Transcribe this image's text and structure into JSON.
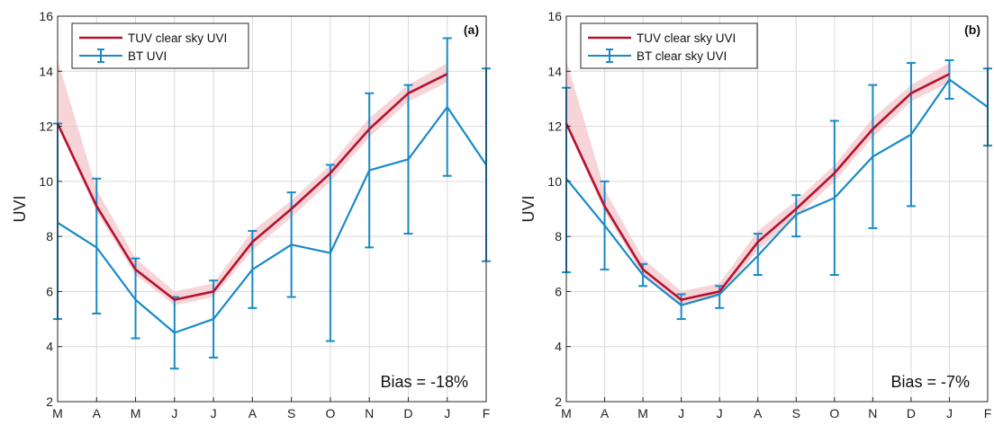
{
  "colors": {
    "tuv": "#b5122e",
    "tuv_band": "#f4c6cb",
    "bt": "#1a8ac6",
    "grid": "#d9d9d9",
    "axis": "#262626"
  },
  "chart_data": [
    {
      "type": "line",
      "panel_label": "(a)",
      "ylabel": "UVI",
      "xlabel": "",
      "categories": [
        "M",
        "A",
        "M",
        "J",
        "J",
        "A",
        "S",
        "O",
        "N",
        "D",
        "J",
        "F"
      ],
      "ylim": [
        2,
        16
      ],
      "yticks": [
        2,
        4,
        6,
        8,
        10,
        12,
        14,
        16
      ],
      "grid": true,
      "legend_position": "top-left",
      "annotation": "Bias = -18%",
      "series": [
        {
          "name": "TUV clear sky UVI",
          "values": [
            12.1,
            9.1,
            6.8,
            5.7,
            6.0,
            7.8,
            9.0,
            10.3,
            11.9,
            13.2,
            13.9,
            null
          ],
          "band_low": [
            12.0,
            8.9,
            6.6,
            5.5,
            5.8,
            7.5,
            8.7,
            10.0,
            11.6,
            12.9,
            13.6,
            null
          ],
          "band_high": [
            14.4,
            9.7,
            7.2,
            6.0,
            6.3,
            8.2,
            9.3,
            10.6,
            12.3,
            13.5,
            14.3,
            null
          ]
        },
        {
          "name": "BT UVI",
          "values": [
            8.5,
            7.6,
            5.7,
            4.5,
            5.0,
            6.8,
            7.7,
            7.4,
            10.4,
            10.8,
            12.7,
            10.6
          ],
          "err_low": [
            5.0,
            5.2,
            4.3,
            3.2,
            3.6,
            5.4,
            5.8,
            4.2,
            7.6,
            8.1,
            10.2,
            7.1
          ],
          "err_high": [
            12.1,
            10.1,
            7.2,
            5.8,
            6.4,
            8.2,
            9.6,
            10.6,
            13.2,
            13.5,
            15.2,
            14.1
          ]
        }
      ]
    },
    {
      "type": "line",
      "panel_label": "(b)",
      "ylabel": "UVI",
      "xlabel": "",
      "categories": [
        "M",
        "A",
        "M",
        "J",
        "J",
        "A",
        "S",
        "O",
        "N",
        "D",
        "J",
        "F"
      ],
      "ylim": [
        2,
        16
      ],
      "yticks": [
        2,
        4,
        6,
        8,
        10,
        12,
        14,
        16
      ],
      "grid": true,
      "legend_position": "top-left",
      "annotation": "Bias = -7%",
      "series": [
        {
          "name": "TUV clear sky UVI",
          "values": [
            12.1,
            9.1,
            6.8,
            5.7,
            6.0,
            7.8,
            9.0,
            10.3,
            11.9,
            13.2,
            13.9,
            null
          ],
          "band_low": [
            12.0,
            8.9,
            6.6,
            5.5,
            5.8,
            7.5,
            8.7,
            10.0,
            11.6,
            12.9,
            13.6,
            null
          ],
          "band_high": [
            14.4,
            9.7,
            7.2,
            6.0,
            6.3,
            8.2,
            9.3,
            10.6,
            12.3,
            13.5,
            14.3,
            null
          ]
        },
        {
          "name": "BT clear sky UVI",
          "values": [
            10.1,
            8.4,
            6.6,
            5.5,
            5.9,
            7.3,
            8.8,
            9.4,
            10.9,
            11.7,
            13.7,
            12.7
          ],
          "err_low": [
            6.7,
            6.8,
            6.2,
            5.0,
            5.4,
            6.6,
            8.0,
            6.6,
            8.3,
            9.1,
            13.0,
            11.3
          ],
          "err_high": [
            13.4,
            10.0,
            7.0,
            5.9,
            6.2,
            8.1,
            9.5,
            12.2,
            13.5,
            14.3,
            14.4,
            14.1
          ]
        }
      ]
    }
  ]
}
